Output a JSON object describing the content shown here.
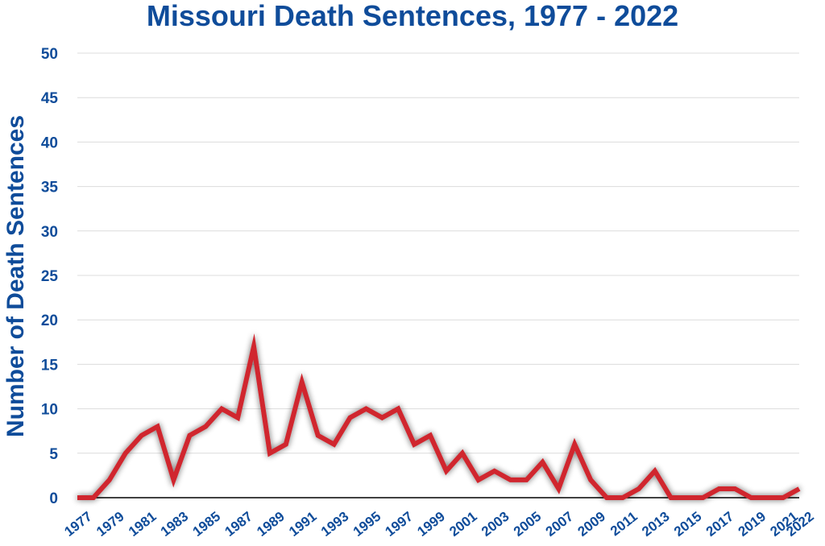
{
  "chart_data": {
    "type": "line",
    "title": "Missouri Death Sentences, 1977 - 2022",
    "xlabel": "",
    "ylabel": "Number of Death Sentences",
    "ylim": [
      0,
      50
    ],
    "y_ticks": [
      0,
      5,
      10,
      15,
      20,
      25,
      30,
      35,
      40,
      45,
      50
    ],
    "x_tick_labels": [
      "1977",
      "1979",
      "1981",
      "1983",
      "1985",
      "1987",
      "1989",
      "1991",
      "1993",
      "1995",
      "1997",
      "1999",
      "2001",
      "2003",
      "2005",
      "2007",
      "2009",
      "2011",
      "2013",
      "2015",
      "2017",
      "2019",
      "2021",
      "2022"
    ],
    "grid": "horizontal",
    "legend": "none",
    "x": [
      1977,
      1978,
      1979,
      1980,
      1981,
      1982,
      1983,
      1984,
      1985,
      1986,
      1987,
      1988,
      1989,
      1990,
      1991,
      1992,
      1993,
      1994,
      1995,
      1996,
      1997,
      1998,
      1999,
      2000,
      2001,
      2002,
      2003,
      2004,
      2005,
      2006,
      2007,
      2008,
      2009,
      2010,
      2011,
      2012,
      2013,
      2014,
      2015,
      2016,
      2017,
      2018,
      2019,
      2020,
      2021,
      2022
    ],
    "series": [
      {
        "values": [
          0,
          0,
          2,
          5,
          7,
          8,
          2,
          7,
          8,
          10,
          9,
          17,
          5,
          6,
          13,
          7,
          6,
          9,
          10,
          9,
          10,
          6,
          7,
          3,
          5,
          2,
          3,
          2,
          2,
          4,
          1,
          6,
          2,
          0,
          0,
          1,
          3,
          0,
          0,
          0,
          1,
          1,
          0,
          0,
          0,
          1
        ],
        "color": "#d0252e"
      }
    ],
    "colors": {
      "title": "#0f4c9a",
      "axis_text": "#0f4c9a",
      "line": "#d0252e",
      "grid": "#dcdcdc",
      "baseline": "#000000"
    }
  }
}
